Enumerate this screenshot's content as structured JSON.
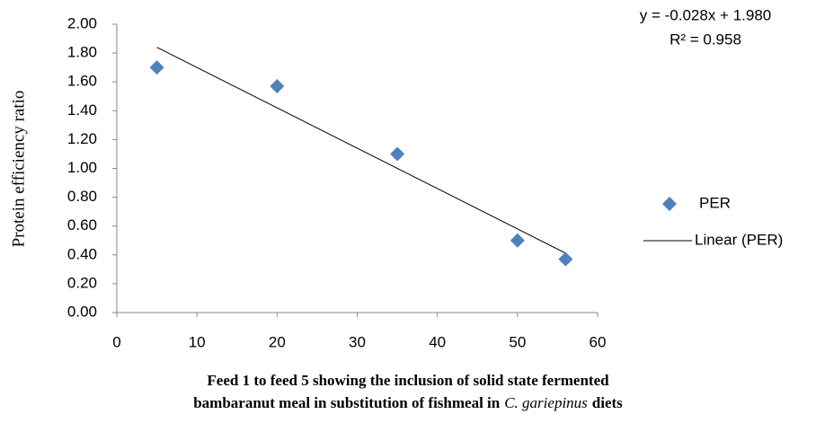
{
  "chart_data": {
    "type": "scatter",
    "ylabel": "Protein efficiency ratio",
    "xlabel": {
      "line1": "Feed 1 to feed 5 showing the inclusion of solid state fermented",
      "line2": "bambaranut meal in substitution of fishmeal in",
      "italic": "C. gariepinus",
      "line2_end": "diets"
    },
    "x": [
      5,
      20,
      35,
      50,
      56
    ],
    "series": [
      {
        "name": "PER",
        "color": "#4f81bd",
        "values": [
          1.7,
          1.57,
          1.1,
          0.5,
          0.37
        ]
      }
    ],
    "trendline": {
      "name": "Linear (PER)",
      "color": "#000000",
      "slope": -0.028,
      "intercept": 1.98,
      "equation": "y = -0.028x + 1.980",
      "r_squared_label": "R² = 0.958"
    },
    "xlim": [
      0,
      60
    ],
    "xticks": [
      0,
      10,
      20,
      30,
      40,
      50,
      60
    ],
    "ylim": [
      0,
      2
    ],
    "yticks": [
      {
        "value": 0,
        "label": "0.00"
      },
      {
        "value": 0.2,
        "label": "0.20"
      },
      {
        "value": 0.4,
        "label": "0.40"
      },
      {
        "value": 0.6,
        "label": "0.60"
      },
      {
        "value": 0.8,
        "label": "0.80"
      },
      {
        "value": 1.0,
        "label": "1.00"
      },
      {
        "value": 1.2,
        "label": "1.20"
      },
      {
        "value": 1.4,
        "label": "1.40"
      },
      {
        "value": 1.6,
        "label": "1.60"
      },
      {
        "value": 1.8,
        "label": "1.80"
      },
      {
        "value": 2.0,
        "label": "2.00"
      }
    ],
    "grid": false,
    "legend": "right"
  }
}
